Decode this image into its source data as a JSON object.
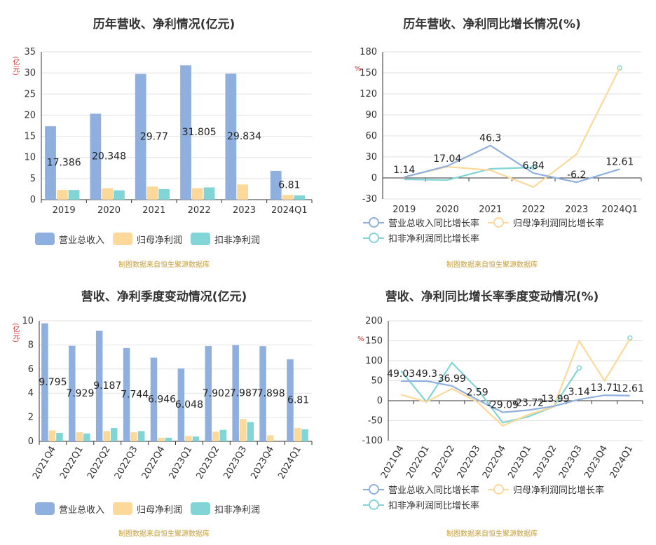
{
  "source_text": "制图数据来自恒生聚源数据库",
  "charts": [
    {
      "title": "历年营收、净利情况(亿元)",
      "unit": "(亿元)",
      "legend": [
        "营业总收入",
        "归母净利润",
        "扣非净利润"
      ],
      "colors": [
        "#8fb0de",
        "#fcd99a",
        "#82d5d6"
      ]
    },
    {
      "title": "历年营收、净利同比增长情况(%)",
      "unit": "%",
      "legend": [
        "营业总收入同比增长率",
        "归母净利润同比增长率",
        "扣非净利润同比增长率"
      ],
      "colors": [
        "#8fb0de",
        "#fcd99a",
        "#82d5d6"
      ]
    },
    {
      "title": "营收、净利季度变动情况(亿元)",
      "unit": "(亿元)",
      "legend": [
        "营业总收入",
        "归母净利润",
        "扣非净利润"
      ],
      "colors": [
        "#8fb0de",
        "#fcd99a",
        "#82d5d6"
      ]
    },
    {
      "title": "营收、净利同比增长率季度变动情况(%)",
      "unit": "%",
      "legend": [
        "营业总收入同比增长率",
        "归母净利润同比增长率",
        "扣非净利润同比增长率"
      ],
      "colors": [
        "#8fb0de",
        "#fcd99a",
        "#82d5d6"
      ]
    }
  ],
  "chart_data": [
    {
      "type": "bar",
      "title": "历年营收、净利情况(亿元)",
      "ylabel": "(亿元)",
      "categories": [
        "2019",
        "2020",
        "2021",
        "2022",
        "2023",
        "2024Q1"
      ],
      "ylim": [
        0,
        35
      ],
      "yticks": [
        0,
        5,
        10,
        15,
        20,
        25,
        30,
        35
      ],
      "series": [
        {
          "name": "营业总收入",
          "values": [
            17.386,
            20.348,
            29.77,
            31.805,
            29.834,
            6.81
          ]
        },
        {
          "name": "归母净利润",
          "values": [
            2.3,
            2.7,
            3.1,
            2.7,
            3.6,
            1.1
          ]
        },
        {
          "name": "扣非净利润",
          "values": [
            2.3,
            2.2,
            2.5,
            2.9,
            null,
            1.0
          ]
        }
      ],
      "data_labels": [
        "17.386",
        "20.348",
        "29.77",
        "31.805",
        "29.834",
        "6.81"
      ]
    },
    {
      "type": "line",
      "title": "历年营收、净利同比增长情况(%)",
      "ylabel": "%",
      "categories": [
        "2019",
        "2020",
        "2021",
        "2022",
        "2023",
        "2024Q1"
      ],
      "ylim": [
        -30,
        180
      ],
      "yticks": [
        -30,
        0,
        30,
        60,
        90,
        120,
        150,
        180
      ],
      "series": [
        {
          "name": "营业总收入同比增长率",
          "values": [
            1.14,
            17.04,
            46.3,
            6.84,
            -6.2,
            12.61
          ]
        },
        {
          "name": "归母净利润同比增长率",
          "values": [
            1,
            16,
            11,
            -13,
            34,
            157
          ]
        },
        {
          "name": "扣非净利润同比增长率",
          "values": [
            -2,
            -3,
            13,
            15,
            null,
            157
          ]
        }
      ],
      "data_labels": [
        "1.14",
        "17.04",
        "46.3",
        "6.84",
        "-6.2",
        "12.61"
      ]
    },
    {
      "type": "bar",
      "title": "营收、净利季度变动情况(亿元)",
      "ylabel": "(亿元)",
      "categories": [
        "2021Q4",
        "2022Q1",
        "2022Q2",
        "2022Q3",
        "2022Q4",
        "2023Q1",
        "2023Q2",
        "2023Q3",
        "2023Q4",
        "2024Q1"
      ],
      "ylim": [
        0,
        10
      ],
      "yticks": [
        0,
        2,
        4,
        6,
        8,
        10
      ],
      "series": [
        {
          "name": "营业总收入",
          "values": [
            9.795,
            7.929,
            9.187,
            7.744,
            6.946,
            6.048,
            7.902,
            7.987,
            7.898,
            6.81
          ]
        },
        {
          "name": "归母净利润",
          "values": [
            0.9,
            0.75,
            0.85,
            0.75,
            0.3,
            0.45,
            0.8,
            1.85,
            0.5,
            1.1
          ]
        },
        {
          "name": "扣非净利润",
          "values": [
            0.7,
            0.65,
            1.1,
            0.85,
            0.3,
            0.4,
            0.95,
            1.6,
            null,
            1.0
          ]
        }
      ],
      "data_labels": [
        "9.795",
        "7.929",
        "9.187",
        "7.744",
        "6.946",
        "6.048",
        "7.902",
        "7.987",
        "7.898",
        "6.81"
      ]
    },
    {
      "type": "line",
      "title": "营收、净利同比增长率季度变动情况(%)",
      "ylabel": "%",
      "categories": [
        "2021Q4",
        "2022Q1",
        "2022Q2",
        "2022Q3",
        "2022Q4",
        "2023Q1",
        "2023Q2",
        "2023Q3",
        "2023Q4",
        "2024Q1"
      ],
      "ylim": [
        -100,
        200
      ],
      "yticks": [
        -100,
        -50,
        0,
        50,
        100,
        150,
        200
      ],
      "series": [
        {
          "name": "营业总收入同比增长率",
          "values": [
            49.03,
            49.3,
            36.99,
            2.59,
            -29.09,
            -23.72,
            -13.99,
            3.14,
            13.71,
            12.61
          ]
        },
        {
          "name": "归母净利润同比增长率",
          "values": [
            15,
            -3,
            30,
            -3,
            -63,
            -35,
            -15,
            150,
            50,
            155
          ]
        },
        {
          "name": "扣非净利润同比增长率",
          "values": [
            75,
            -3,
            95,
            30,
            -55,
            -40,
            -15,
            82,
            null,
            157
          ]
        }
      ],
      "data_labels": [
        "49.03",
        "49.3",
        "36.99",
        "2.59",
        "-29.09",
        "-23.72",
        "-13.99",
        "3.14",
        "13.71",
        "12.61"
      ]
    }
  ]
}
